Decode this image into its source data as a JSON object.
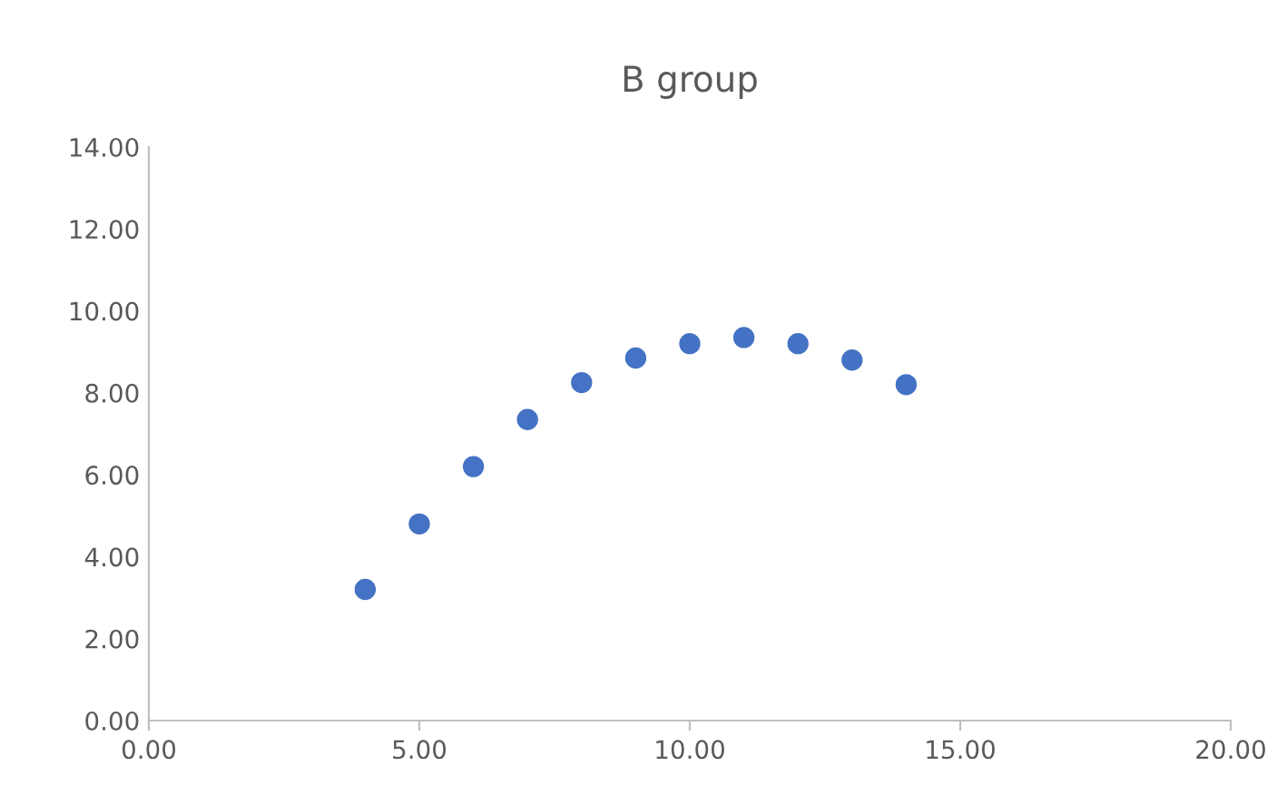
{
  "chart_data": {
    "type": "scatter",
    "title": "B group",
    "x": [
      4,
      5,
      6,
      7,
      8,
      9,
      10,
      11,
      12,
      13,
      14
    ],
    "series": [
      {
        "color": "#4472c4",
        "values": [
          3.2,
          4.8,
          6.2,
          7.35,
          8.25,
          8.85,
          9.2,
          9.35,
          9.2,
          8.8,
          8.2
        ]
      }
    ],
    "marker": "circle",
    "grid": false,
    "legend": false,
    "xlim": [
      0,
      20
    ],
    "xticks": [
      {
        "value": 0,
        "label": "0.00"
      },
      {
        "value": 5,
        "label": "5.00"
      },
      {
        "value": 10,
        "label": "10.00"
      },
      {
        "value": 15,
        "label": "15.00"
      },
      {
        "value": 20,
        "label": "20.00"
      }
    ],
    "ylim": [
      0,
      14
    ],
    "yticks": [
      {
        "value": 0,
        "label": "0.00"
      },
      {
        "value": 2,
        "label": "2.00"
      },
      {
        "value": 4,
        "label": "4.00"
      },
      {
        "value": 6,
        "label": "6.00"
      },
      {
        "value": 8,
        "label": "8.00"
      },
      {
        "value": 10,
        "label": "10.00"
      },
      {
        "value": 12,
        "label": "12.00"
      },
      {
        "value": 14,
        "label": "14.00"
      }
    ]
  }
}
